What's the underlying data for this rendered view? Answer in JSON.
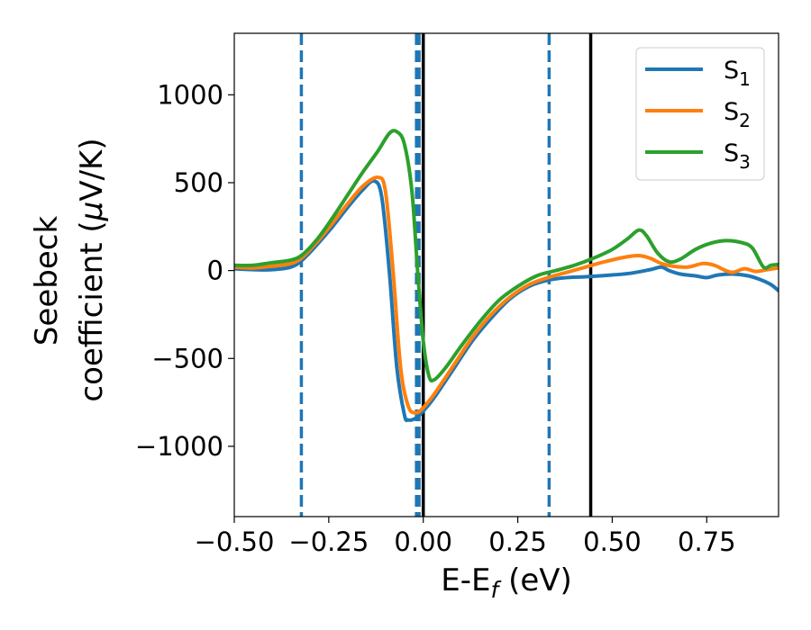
{
  "chart_data": {
    "type": "line",
    "title": "",
    "xlabel": {
      "main": "E-E",
      "sub": "f",
      "unit": " (eV)"
    },
    "ylabel": {
      "line1": "Seebeck",
      "line2_main": "coefficient  (",
      "line2_mu": "μ",
      "line2_unit": "V/K)"
    },
    "xlim": [
      -0.5,
      0.94
    ],
    "ylim": [
      -1400,
      1350
    ],
    "xticks": [
      -0.5,
      -0.25,
      0.0,
      0.25,
      0.5,
      0.75
    ],
    "xtick_labels": [
      "−0.50",
      "−0.25",
      "0.00",
      "0.25",
      "0.50",
      "0.75"
    ],
    "yticks": [
      -1000,
      -500,
      0,
      500,
      1000
    ],
    "ytick_labels": [
      "−1000",
      "−500",
      "0",
      "500",
      "1000"
    ],
    "grid": false,
    "legend_position": "top-right",
    "series": [
      {
        "name": "S",
        "subscript": "1",
        "color": "#1f77b4",
        "points": [
          [
            -0.5,
            10
          ],
          [
            -0.45,
            5
          ],
          [
            -0.4,
            5
          ],
          [
            -0.35,
            20
          ],
          [
            -0.32,
            60
          ],
          [
            -0.28,
            150
          ],
          [
            -0.24,
            250
          ],
          [
            -0.2,
            360
          ],
          [
            -0.16,
            460
          ],
          [
            -0.13,
            510
          ],
          [
            -0.11,
            420
          ],
          [
            -0.09,
            0
          ],
          [
            -0.07,
            -550
          ],
          [
            -0.05,
            -820
          ],
          [
            -0.04,
            -850
          ],
          [
            -0.02,
            -840
          ],
          [
            0.0,
            -800
          ],
          [
            0.03,
            -720
          ],
          [
            0.08,
            -560
          ],
          [
            0.13,
            -400
          ],
          [
            0.18,
            -270
          ],
          [
            0.23,
            -160
          ],
          [
            0.28,
            -90
          ],
          [
            0.33,
            -55
          ],
          [
            0.38,
            -40
          ],
          [
            0.43,
            -35
          ],
          [
            0.5,
            -25
          ],
          [
            0.55,
            -15
          ],
          [
            0.6,
            5
          ],
          [
            0.63,
            20
          ],
          [
            0.65,
            0
          ],
          [
            0.68,
            -20
          ],
          [
            0.72,
            -30
          ],
          [
            0.75,
            -40
          ],
          [
            0.78,
            -25
          ],
          [
            0.82,
            -20
          ],
          [
            0.86,
            -30
          ],
          [
            0.89,
            -50
          ],
          [
            0.92,
            -80
          ],
          [
            0.94,
            -115
          ]
        ]
      },
      {
        "name": "S",
        "subscript": "2",
        "color": "#ff7f0e",
        "points": [
          [
            -0.5,
            20
          ],
          [
            -0.45,
            15
          ],
          [
            -0.4,
            25
          ],
          [
            -0.35,
            40
          ],
          [
            -0.32,
            75
          ],
          [
            -0.28,
            165
          ],
          [
            -0.24,
            270
          ],
          [
            -0.2,
            380
          ],
          [
            -0.16,
            480
          ],
          [
            -0.12,
            530
          ],
          [
            -0.1,
            450
          ],
          [
            -0.08,
            0
          ],
          [
            -0.06,
            -550
          ],
          [
            -0.04,
            -770
          ],
          [
            -0.02,
            -810
          ],
          [
            0.0,
            -780
          ],
          [
            0.03,
            -700
          ],
          [
            0.08,
            -540
          ],
          [
            0.13,
            -380
          ],
          [
            0.18,
            -250
          ],
          [
            0.23,
            -150
          ],
          [
            0.28,
            -80
          ],
          [
            0.33,
            -40
          ],
          [
            0.38,
            -10
          ],
          [
            0.43,
            20
          ],
          [
            0.48,
            50
          ],
          [
            0.53,
            75
          ],
          [
            0.57,
            85
          ],
          [
            0.6,
            70
          ],
          [
            0.63,
            40
          ],
          [
            0.66,
            25
          ],
          [
            0.7,
            20
          ],
          [
            0.74,
            40
          ],
          [
            0.77,
            30
          ],
          [
            0.8,
            0
          ],
          [
            0.82,
            -10
          ],
          [
            0.85,
            10
          ],
          [
            0.88,
            -5
          ],
          [
            0.91,
            5
          ],
          [
            0.94,
            15
          ]
        ]
      },
      {
        "name": "S",
        "subscript": "3",
        "color": "#2ca02c",
        "points": [
          [
            -0.5,
            30
          ],
          [
            -0.45,
            30
          ],
          [
            -0.4,
            45
          ],
          [
            -0.35,
            60
          ],
          [
            -0.32,
            90
          ],
          [
            -0.28,
            180
          ],
          [
            -0.24,
            300
          ],
          [
            -0.2,
            430
          ],
          [
            -0.16,
            560
          ],
          [
            -0.12,
            680
          ],
          [
            -0.09,
            780
          ],
          [
            -0.07,
            790
          ],
          [
            -0.05,
            720
          ],
          [
            -0.03,
            450
          ],
          [
            -0.015,
            0
          ],
          [
            0.0,
            -400
          ],
          [
            0.015,
            -600
          ],
          [
            0.03,
            -620
          ],
          [
            0.06,
            -550
          ],
          [
            0.1,
            -430
          ],
          [
            0.15,
            -290
          ],
          [
            0.2,
            -170
          ],
          [
            0.25,
            -90
          ],
          [
            0.3,
            -30
          ],
          [
            0.35,
            0
          ],
          [
            0.4,
            30
          ],
          [
            0.45,
            70
          ],
          [
            0.5,
            120
          ],
          [
            0.54,
            180
          ],
          [
            0.57,
            230
          ],
          [
            0.59,
            200
          ],
          [
            0.62,
            100
          ],
          [
            0.65,
            50
          ],
          [
            0.68,
            65
          ],
          [
            0.72,
            120
          ],
          [
            0.76,
            155
          ],
          [
            0.8,
            170
          ],
          [
            0.84,
            160
          ],
          [
            0.87,
            130
          ],
          [
            0.9,
            20
          ],
          [
            0.92,
            30
          ],
          [
            0.94,
            35
          ]
        ]
      }
    ],
    "vlines": [
      {
        "x": -0.3225,
        "color": "#1f77b4",
        "style": "dashed"
      },
      {
        "x": -0.018,
        "color": "#1f77b4",
        "style": "dashed"
      },
      {
        "x": -0.011,
        "color": "#1f77b4",
        "style": "dashed"
      },
      {
        "x": 0.333,
        "color": "#1f77b4",
        "style": "dashed"
      },
      {
        "x": 0.0,
        "color": "#000000",
        "style": "solid"
      },
      {
        "x": 0.443,
        "color": "#000000",
        "style": "solid"
      }
    ]
  }
}
